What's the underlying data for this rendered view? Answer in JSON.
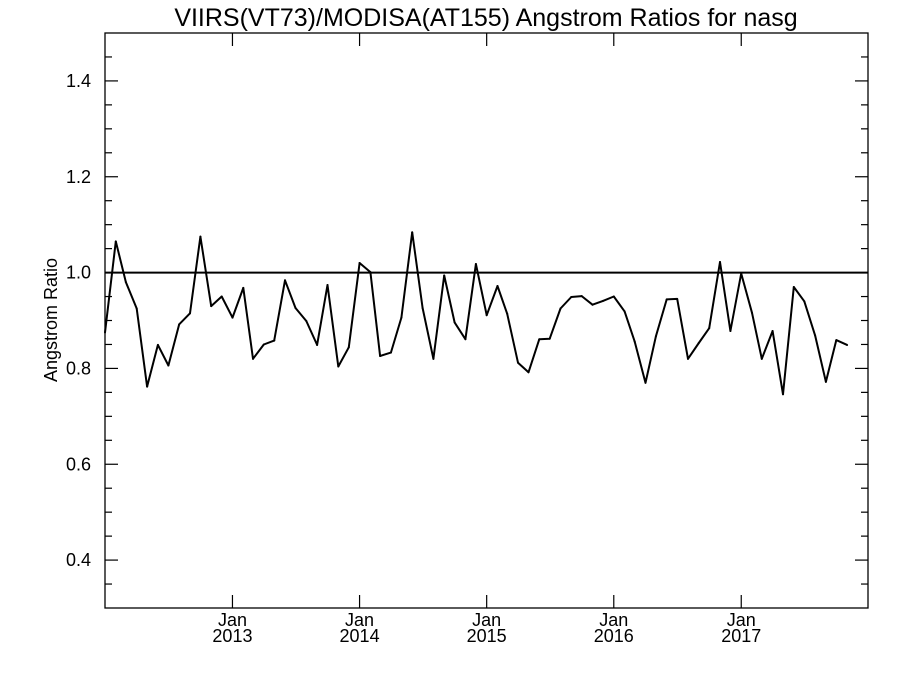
{
  "chart_data": {
    "type": "line",
    "title": "VIIRS(VT73)/MODISA(AT155)  Angstrom Ratios for nasg",
    "xlabel": "",
    "ylabel": "Angstrom Ratio",
    "ylim": [
      0.3,
      1.5
    ],
    "xlim": [
      "2012-01-01",
      "2017-12-31"
    ],
    "y_ticks": [
      0.4,
      0.6,
      0.8,
      1.0,
      1.2,
      1.4
    ],
    "y_tick_labels": [
      "0.4",
      "0.6",
      "0.8",
      "1.0",
      "1.2",
      "1.4"
    ],
    "x_ticks": [
      {
        "date": "2013-01-01",
        "month": "Jan",
        "year": "2013"
      },
      {
        "date": "2014-01-01",
        "month": "Jan",
        "year": "2014"
      },
      {
        "date": "2015-01-01",
        "month": "Jan",
        "year": "2015"
      },
      {
        "date": "2016-01-01",
        "month": "Jan",
        "year": "2016"
      },
      {
        "date": "2017-01-01",
        "month": "Jan",
        "year": "2017"
      }
    ],
    "reference_line": 1.0,
    "grid": false,
    "series": [
      {
        "color": "#000000",
        "points": [
          [
            "2012-01-01",
            0.875
          ],
          [
            "2012-02-01",
            1.065
          ],
          [
            "2012-03-01",
            0.98
          ],
          [
            "2012-04-01",
            0.925
          ],
          [
            "2012-05-01",
            0.762
          ],
          [
            "2012-06-01",
            0.849
          ],
          [
            "2012-07-01",
            0.806
          ],
          [
            "2012-08-01",
            0.892
          ],
          [
            "2012-09-01",
            0.915
          ],
          [
            "2012-10-01",
            1.075
          ],
          [
            "2012-11-01",
            0.93
          ],
          [
            "2012-12-01",
            0.95
          ],
          [
            "2013-01-01",
            0.906
          ],
          [
            "2013-02-01",
            0.968
          ],
          [
            "2013-03-01",
            0.82
          ],
          [
            "2013-04-01",
            0.85
          ],
          [
            "2013-05-01",
            0.858
          ],
          [
            "2013-06-01",
            0.984
          ],
          [
            "2013-07-01",
            0.926
          ],
          [
            "2013-08-01",
            0.899
          ],
          [
            "2013-09-01",
            0.849
          ],
          [
            "2013-10-01",
            0.974
          ],
          [
            "2013-11-01",
            0.804
          ],
          [
            "2013-12-01",
            0.844
          ],
          [
            "2014-01-01",
            1.02
          ],
          [
            "2014-02-01",
            1.001
          ],
          [
            "2014-03-01",
            0.826
          ],
          [
            "2014-04-01",
            0.833
          ],
          [
            "2014-05-01",
            0.906
          ],
          [
            "2014-06-01",
            1.084
          ],
          [
            "2014-07-01",
            0.926
          ],
          [
            "2014-08-01",
            0.82
          ],
          [
            "2014-09-01",
            0.994
          ],
          [
            "2014-10-01",
            0.896
          ],
          [
            "2014-11-01",
            0.861
          ],
          [
            "2014-12-01",
            1.018
          ],
          [
            "2015-01-01",
            0.911
          ],
          [
            "2015-02-01",
            0.972
          ],
          [
            "2015-03-01",
            0.914
          ],
          [
            "2015-04-01",
            0.812
          ],
          [
            "2015-05-01",
            0.792
          ],
          [
            "2015-06-01",
            0.861
          ],
          [
            "2015-07-01",
            0.862
          ],
          [
            "2015-08-01",
            0.925
          ],
          [
            "2015-09-01",
            0.949
          ],
          [
            "2015-10-01",
            0.951
          ],
          [
            "2015-11-01",
            0.933
          ],
          [
            "2015-12-01",
            0.941
          ],
          [
            "2016-01-01",
            0.95
          ],
          [
            "2016-02-01",
            0.919
          ],
          [
            "2016-03-01",
            0.856
          ],
          [
            "2016-04-01",
            0.77
          ],
          [
            "2016-05-01",
            0.867
          ],
          [
            "2016-06-01",
            0.944
          ],
          [
            "2016-07-01",
            0.945
          ],
          [
            "2016-08-01",
            0.82
          ],
          [
            "2016-09-01",
            0.853
          ],
          [
            "2016-10-01",
            0.884
          ],
          [
            "2016-11-01",
            1.022
          ],
          [
            "2016-12-01",
            0.878
          ],
          [
            "2017-01-01",
            0.998
          ],
          [
            "2017-02-01",
            0.916
          ],
          [
            "2017-03-01",
            0.82
          ],
          [
            "2017-04-01",
            0.878
          ],
          [
            "2017-05-01",
            0.746
          ],
          [
            "2017-06-01",
            0.97
          ],
          [
            "2017-07-01",
            0.94
          ],
          [
            "2017-08-01",
            0.869
          ],
          [
            "2017-09-01",
            0.772
          ],
          [
            "2017-10-01",
            0.859
          ],
          [
            "2017-11-01",
            0.849
          ]
        ]
      }
    ]
  }
}
